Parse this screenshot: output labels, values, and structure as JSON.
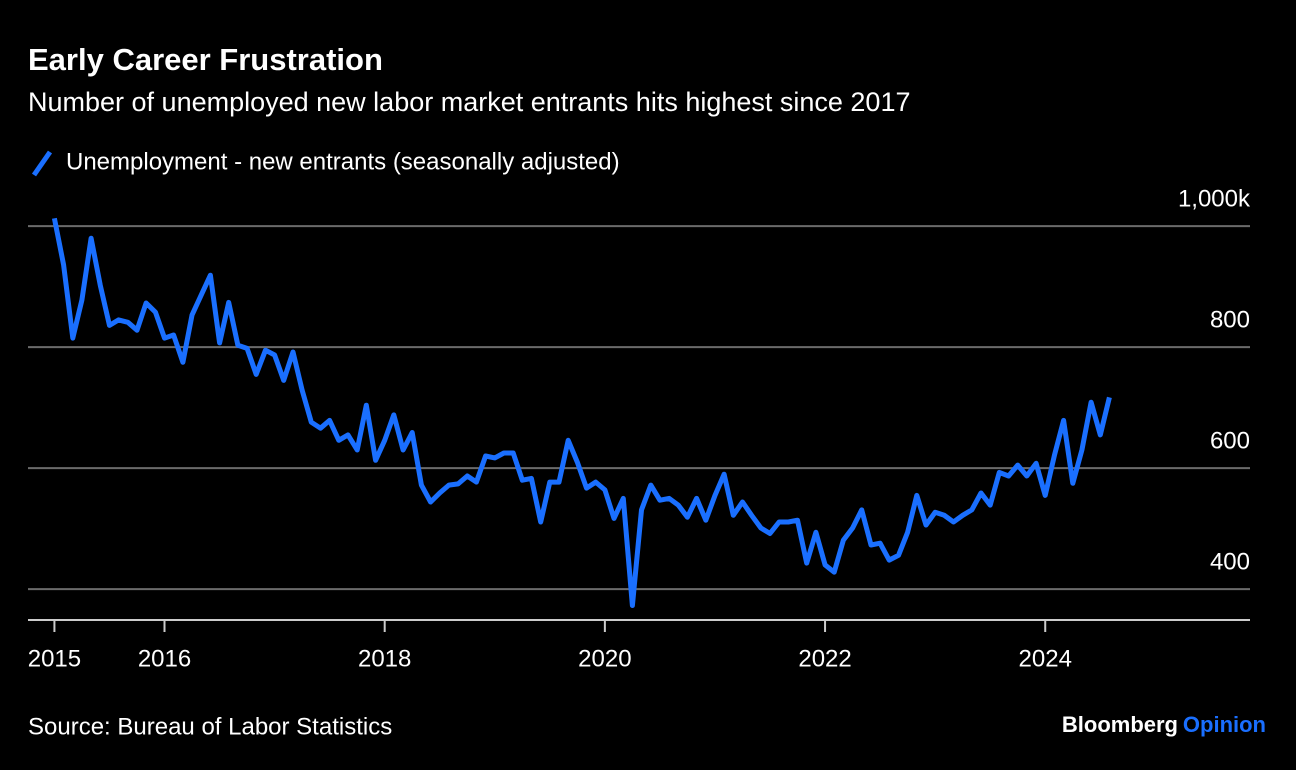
{
  "chart_data": {
    "type": "line",
    "title": "Early Career Frustration",
    "subtitle": "Number of unemployed new labor market entrants hits highest since 2017",
    "source": "Source: Bureau of Labor Statistics",
    "brand": "Bloomberg",
    "brand_suffix": "Opinion",
    "x": [
      2015,
      2015.083,
      2015.167,
      2015.25,
      2015.333,
      2015.417,
      2015.5,
      2015.583,
      2015.667,
      2015.75,
      2015.833,
      2015.917,
      2016,
      2016.083,
      2016.167,
      2016.25,
      2016.333,
      2016.417,
      2016.5,
      2016.583,
      2016.667,
      2016.75,
      2016.833,
      2016.917,
      2017,
      2017.083,
      2017.167,
      2017.25,
      2017.333,
      2017.417,
      2017.5,
      2017.583,
      2017.667,
      2017.75,
      2017.833,
      2017.917,
      2018,
      2018.083,
      2018.167,
      2018.25,
      2018.333,
      2018.417,
      2018.5,
      2018.583,
      2018.667,
      2018.75,
      2018.833,
      2018.917,
      2019,
      2019.083,
      2019.167,
      2019.25,
      2019.333,
      2019.417,
      2019.5,
      2019.583,
      2019.667,
      2019.75,
      2019.833,
      2019.917,
      2020,
      2020.083,
      2020.167,
      2020.25,
      2020.333,
      2020.417,
      2020.5,
      2020.583,
      2020.667,
      2020.75,
      2020.833,
      2020.917,
      2021,
      2021.083,
      2021.167,
      2021.25,
      2021.333,
      2021.417,
      2021.5,
      2021.583,
      2021.667,
      2021.75,
      2021.833,
      2021.917,
      2022,
      2022.083,
      2022.167,
      2022.25,
      2022.333,
      2022.417,
      2022.5,
      2022.583,
      2022.667,
      2022.75,
      2022.833,
      2022.917,
      2023,
      2023.083,
      2023.167,
      2023.25,
      2023.333,
      2023.417,
      2023.5,
      2023.583,
      2023.667,
      2023.75,
      2023.833,
      2023.917,
      2024,
      2024.083,
      2024.167,
      2024.25,
      2024.333,
      2024.417,
      2024.5,
      2024.583
    ],
    "series": [
      {
        "name": "Unemployment - new entrants (seasonally adjusted)",
        "color": "#1a6fff",
        "values": [
          1013,
          936,
          815,
          878,
          980,
          902,
          836,
          845,
          841,
          828,
          873,
          858,
          815,
          820,
          775,
          853,
          886,
          919,
          807,
          874,
          803,
          798,
          755,
          795,
          787,
          745,
          792,
          729,
          676,
          666,
          679,
          646,
          655,
          630,
          704,
          613,
          646,
          688,
          630,
          659,
          572,
          544,
          559,
          572,
          574,
          587,
          577,
          620,
          617,
          625,
          625,
          580,
          583,
          511,
          577,
          577,
          646,
          610,
          567,
          577,
          564,
          517,
          550,
          373,
          531,
          572,
          547,
          550,
          539,
          519,
          550,
          514,
          555,
          590,
          522,
          544,
          522,
          501,
          492,
          511,
          511,
          514,
          443,
          494,
          440,
          428,
          481,
          501,
          531,
          473,
          476,
          448,
          456,
          494,
          555,
          506,
          527,
          522,
          511,
          522,
          531,
          559,
          539,
          593,
          587,
          605,
          587,
          608,
          555,
          621,
          679,
          575,
          630,
          709,
          655,
          717
        ]
      }
    ],
    "xlim": [
      2014.76,
      2025.86
    ],
    "xticks": [
      2015,
      2016,
      2018,
      2020,
      2022,
      2024
    ],
    "ylim": [
      349,
      1030
    ],
    "yticks": [
      400,
      600,
      800,
      {
        "value": 1000,
        "label": "1,000k"
      }
    ],
    "grid": true
  }
}
